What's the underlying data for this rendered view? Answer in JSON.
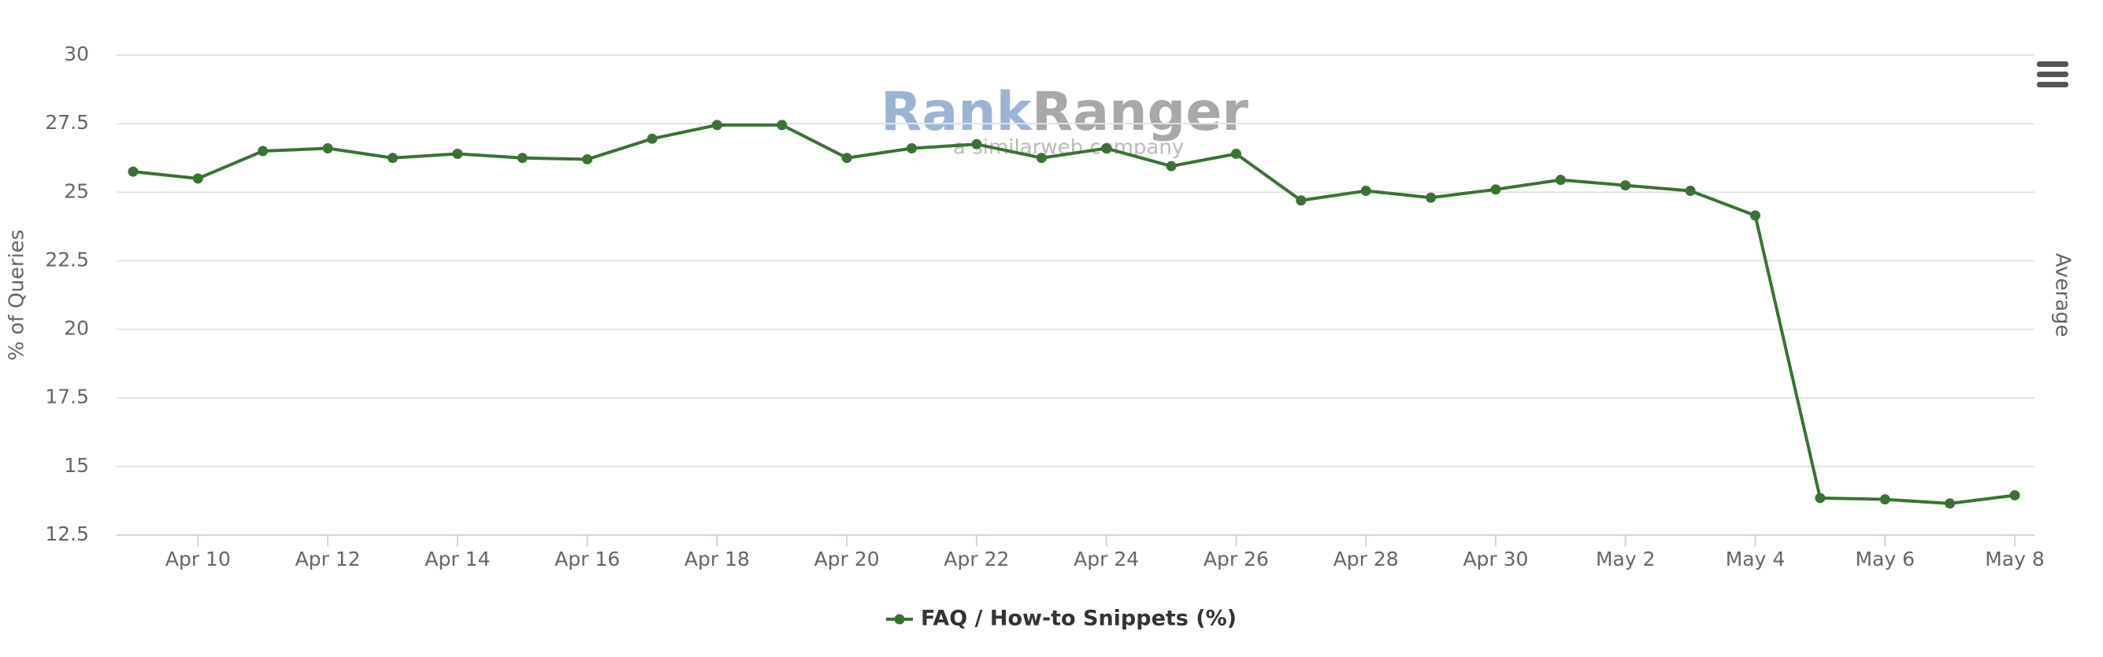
{
  "chart_data": {
    "type": "line",
    "y_axis_title": "% of Queries",
    "y2_axis_title": "Average",
    "watermark_text": [
      "Rank",
      "Ranger"
    ],
    "watermark_tagline": "a similarweb company",
    "categories": [
      null,
      "Apr 10",
      null,
      "Apr 12",
      null,
      "Apr 14",
      null,
      "Apr 16",
      null,
      "Apr 18",
      null,
      "Apr 20",
      null,
      "Apr 22",
      null,
      "Apr 24",
      null,
      "Apr 26",
      null,
      "Apr 28",
      null,
      "Apr 30",
      null,
      "May 2",
      null,
      "May 4",
      null,
      "May 6",
      null,
      "May 8"
    ],
    "series": [
      {
        "name": "FAQ / How-to Snippets (%)",
        "color": "#3b7135",
        "values": [
          25.75,
          25.5,
          26.5,
          26.6,
          26.25,
          26.4,
          26.25,
          26.2,
          26.95,
          27.45,
          27.45,
          26.25,
          26.6,
          26.75,
          26.25,
          26.6,
          25.95,
          26.4,
          24.7,
          25.05,
          24.8,
          25.1,
          25.45,
          25.25,
          25.05,
          24.15,
          13.85,
          13.8,
          13.65,
          13.95
        ]
      }
    ],
    "ylim": [
      12.5,
      30
    ],
    "yticks": [
      12.5,
      15,
      17.5,
      20,
      22.5,
      25,
      27.5,
      30
    ],
    "grid": true
  }
}
